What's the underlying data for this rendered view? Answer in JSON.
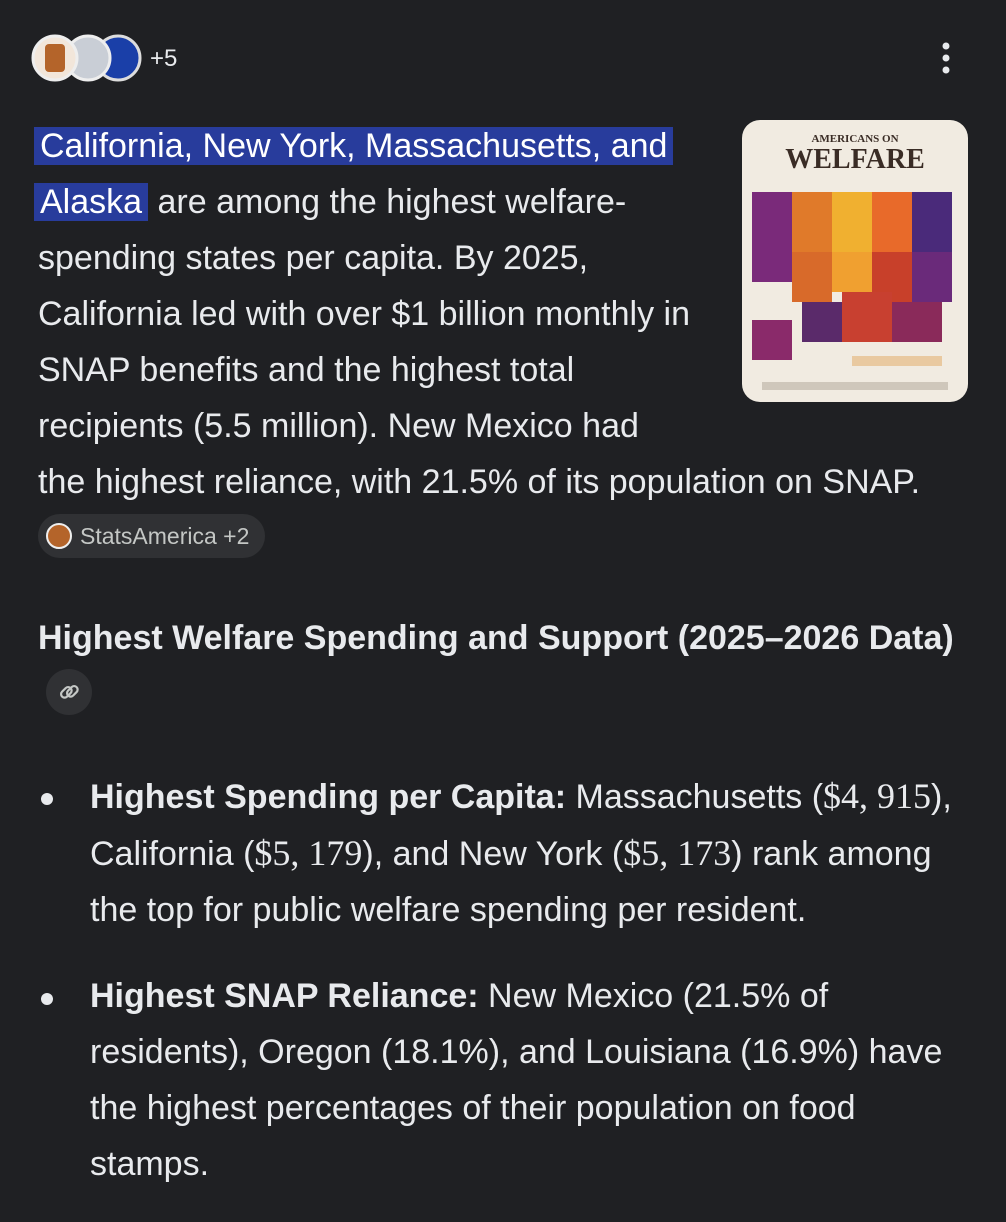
{
  "header": {
    "more_sources": "+5"
  },
  "answer": {
    "paragraph": {
      "highlight": "California, New York, Massachusetts, and Alaska",
      "text": "are among the highest welfare-spending states per capita. By 2025, California led with over $1 billion monthly in SNAP benefits and the highest total recipients (5.5 million). New Mexico had the highest reliance, with 21.5% of its population on SNAP.",
      "source": "StatsAmerica +2"
    },
    "image": {
      "title_line1": "AMERICANS ON",
      "title_line2": "WELFARE"
    },
    "section_heading": "Highest Welfare Spending and Support (2025–2026 Data)",
    "bullets": [
      {
        "label": "Highest Spending per Capita:",
        "parts": [
          "Massachusetts (",
          "$4, 915",
          "), California (",
          "$5, 179",
          "), and New York (",
          "$5, 173",
          ") rank among the top for public welfare spending per resident."
        ]
      },
      {
        "label": "Highest SNAP Reliance:",
        "parts": [
          "New Mexico (21.5% of residents), Oregon (18.1%), and Louisiana (16.9%) have the highest percentages of their population on food stamps."
        ]
      }
    ]
  }
}
